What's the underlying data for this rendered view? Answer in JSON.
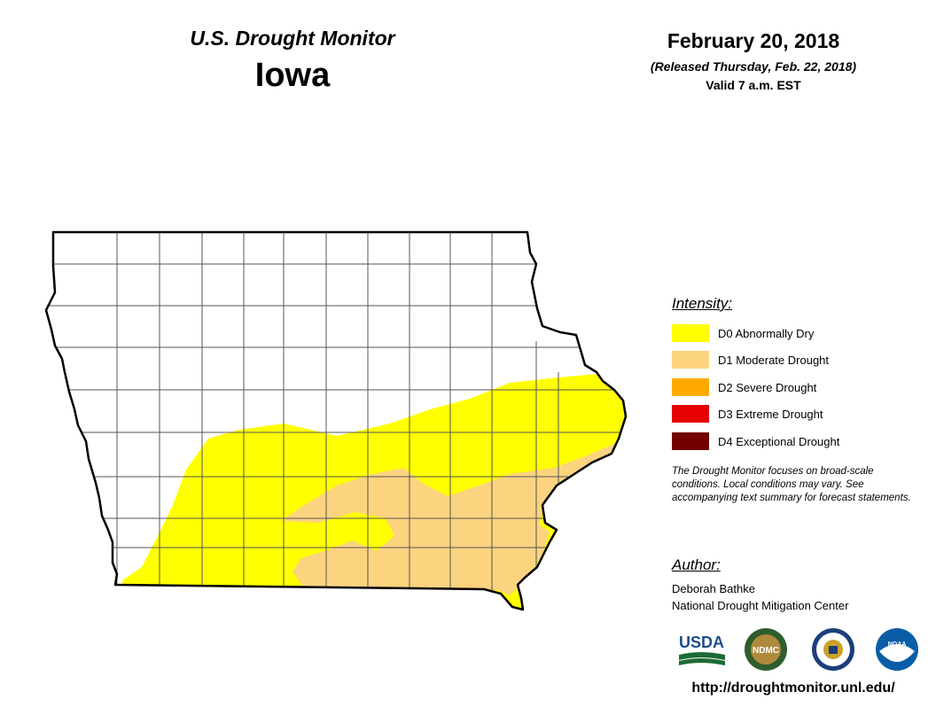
{
  "header": {
    "product": "U.S. Drought Monitor",
    "state": "Iowa",
    "date": "February 20, 2018",
    "released": "(Released Thursday, Feb. 22, 2018)",
    "valid": "Valid 7 a.m. EST"
  },
  "legend": {
    "heading": "Intensity:",
    "categories": [
      {
        "label": "D0 Abnormally Dry",
        "color": "#ffff00"
      },
      {
        "label": "D1 Moderate Drought",
        "color": "#fcd37f"
      },
      {
        "label": "D2 Severe Drought",
        "color": "#ffaa00"
      },
      {
        "label": "D3 Extreme Drought",
        "color": "#e60000"
      },
      {
        "label": "D4 Exceptional Drought",
        "color": "#730000"
      }
    ],
    "note": "The Drought Monitor focuses on broad-scale conditions. Local conditions may vary. See accompanying text summary for forecast statements."
  },
  "author": {
    "heading": "Author:",
    "name": "Deborah Bathke",
    "organization": "National Drought Mitigation Center"
  },
  "logos": {
    "usda_text": "USDA",
    "ndmc_text": "NDMC",
    "noaa_text": "NOAA",
    "icons": [
      "usda-logo-icon",
      "ndmc-logo-icon",
      "doc-seal-icon",
      "noaa-logo-icon"
    ]
  },
  "url": "http://droughtmonitor.unl.edu/",
  "map": {
    "drought_coverage": [
      "D0",
      "D1"
    ],
    "state_outline_color": "#000000",
    "county_line_color": "#555555"
  }
}
